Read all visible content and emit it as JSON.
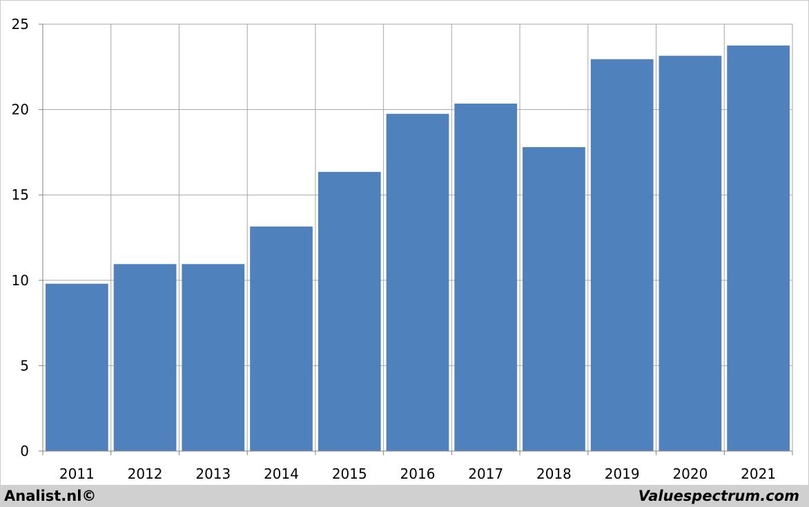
{
  "chart_data": {
    "type": "bar",
    "categories": [
      "2011",
      "2012",
      "2013",
      "2014",
      "2015",
      "2016",
      "2017",
      "2018",
      "2019",
      "2020",
      "2021"
    ],
    "values": [
      9.8,
      10.95,
      10.95,
      13.15,
      16.35,
      19.75,
      20.35,
      17.8,
      22.95,
      23.15,
      23.75
    ],
    "ylim": [
      0,
      25
    ],
    "yticks": [
      0,
      5,
      10,
      15,
      20,
      25
    ],
    "grid": true,
    "bar_color": "#4f81bd",
    "title": "",
    "xlabel": "",
    "ylabel": ""
  },
  "footer": {
    "left_text": "Analist.nl©",
    "right_text": "Valuespectrum.com"
  }
}
